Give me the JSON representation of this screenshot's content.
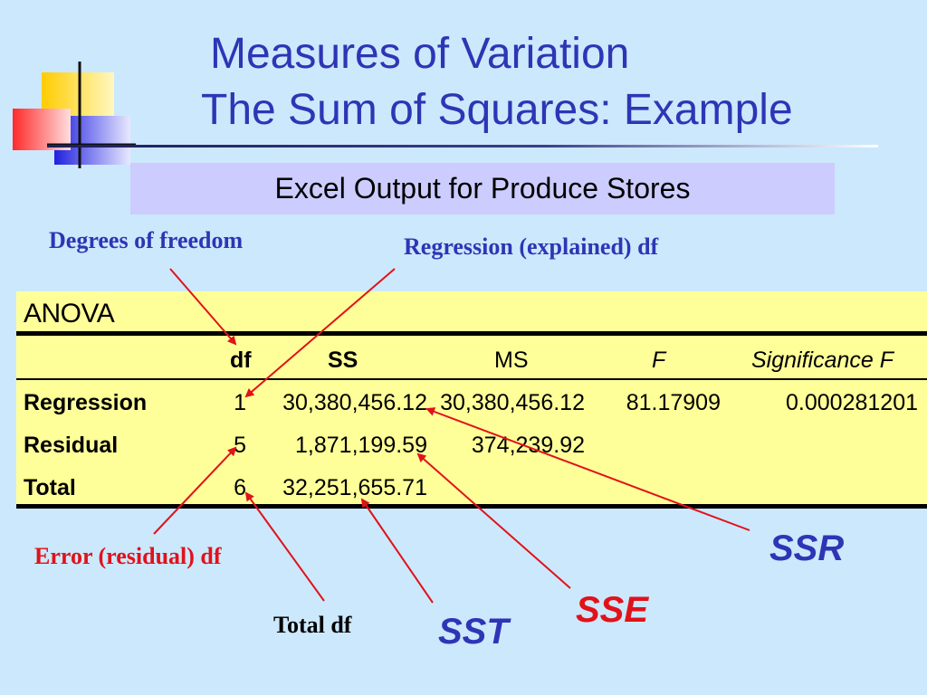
{
  "title": {
    "line1": "Measures of Variation",
    "line2": "The Sum of Squares: Example"
  },
  "subtitle": "Excel Output for Produce Stores",
  "callouts": {
    "degrees_of_freedom": "Degrees of freedom",
    "regression_df": "Regression (explained) df",
    "error_df": "Error (residual) df",
    "total_df": "Total df",
    "ssr": "SSR",
    "sse": "SSE",
    "sst": "SST"
  },
  "anova": {
    "title": "ANOVA",
    "headers": {
      "df": "df",
      "ss": "SS",
      "ms": "MS",
      "f": "F",
      "sig": "Significance F"
    },
    "rows": [
      {
        "label": "Regression",
        "df": "1",
        "ss": "30,380,456.12",
        "ms": "30,380,456.12",
        "f": "81.17909",
        "sig": "0.000281201"
      },
      {
        "label": "Residual",
        "df": "5",
        "ss": "1,871,199.59",
        "ms": "374,239.92",
        "f": "",
        "sig": ""
      },
      {
        "label": "Total",
        "df": "6",
        "ss": "32,251,655.71",
        "ms": "",
        "f": "",
        "sig": ""
      }
    ]
  },
  "colors": {
    "background": "#cce8fc",
    "title_blue": "#2e35b5",
    "callout_red": "#e0121a",
    "table_fill": "#ffff99",
    "subtitle_fill": "#ccccff",
    "arrow_red": "#e0121a"
  }
}
